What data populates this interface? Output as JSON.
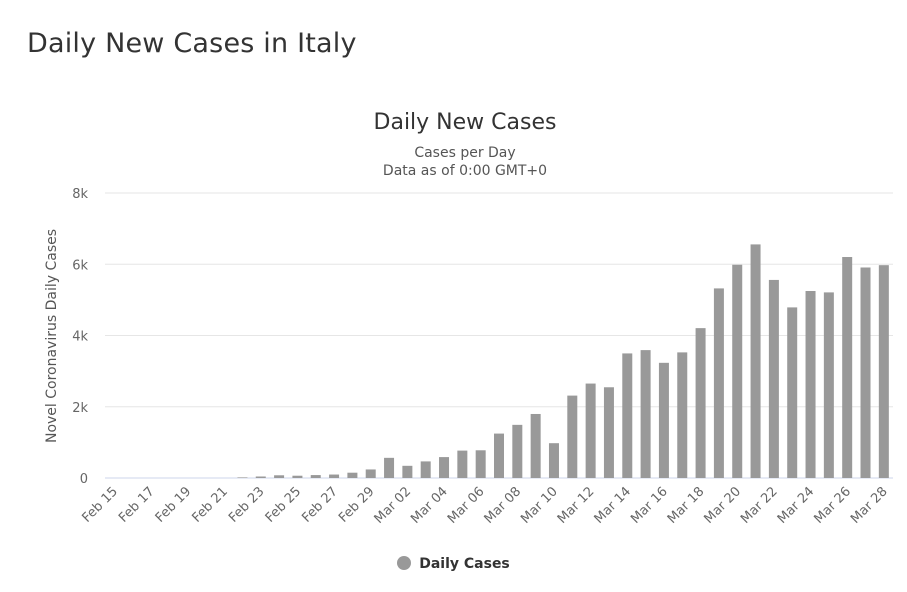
{
  "page": {
    "title": "Daily New Cases in Italy"
  },
  "chart_data": {
    "type": "bar",
    "title": "Daily New Cases",
    "subtitle": [
      "Cases per Day",
      "Data as of 0:00 GMT+0"
    ],
    "xlabel": "",
    "ylabel": "Novel Coronavirus Daily Cases",
    "ylim": [
      0,
      8000
    ],
    "y_ticks": [
      0,
      2000,
      4000,
      6000,
      8000
    ],
    "y_tick_labels": [
      "0",
      "2k",
      "4k",
      "6k",
      "8k"
    ],
    "grid": true,
    "legend_position": "bottom",
    "bar_color": "#999999",
    "categories": [
      "Feb 15",
      "Feb 16",
      "Feb 17",
      "Feb 18",
      "Feb 19",
      "Feb 20",
      "Feb 21",
      "Feb 22",
      "Feb 23",
      "Feb 24",
      "Feb 25",
      "Feb 26",
      "Feb 27",
      "Feb 28",
      "Feb 29",
      "Mar 01",
      "Mar 02",
      "Mar 03",
      "Mar 04",
      "Mar 05",
      "Mar 06",
      "Mar 07",
      "Mar 08",
      "Mar 09",
      "Mar 10",
      "Mar 11",
      "Mar 12",
      "Mar 13",
      "Mar 14",
      "Mar 15",
      "Mar 16",
      "Mar 17",
      "Mar 18",
      "Mar 19",
      "Mar 20",
      "Mar 21",
      "Mar 22",
      "Mar 23",
      "Mar 24",
      "Mar 25",
      "Mar 26",
      "Mar 27",
      "Mar 28"
    ],
    "x_tick_labels": [
      "Feb 15",
      "Feb 17",
      "Feb 19",
      "Feb 21",
      "Feb 23",
      "Feb 25",
      "Feb 27",
      "Feb 29",
      "Mar 02",
      "Mar 04",
      "Mar 06",
      "Mar 08",
      "Mar 10",
      "Mar 12",
      "Mar 14",
      "Mar 16",
      "Mar 18",
      "Mar 20",
      "Mar 22",
      "Mar 24",
      "Mar 26",
      "Mar 28"
    ],
    "series": [
      {
        "name": "Daily Cases",
        "values": [
          0,
          0,
          0,
          0,
          0,
          0,
          0,
          17,
          42,
          76,
          64,
          82,
          97,
          149,
          240,
          566,
          342,
          466,
          587,
          769,
          778,
          1247,
          1492,
          1797,
          977,
          2313,
          2651,
          2547,
          3497,
          3590,
          3233,
          3526,
          4207,
          5322,
          5986,
          6557,
          5560,
          4789,
          5249,
          5210,
          6203,
          5909,
          5974
        ]
      }
    ]
  }
}
